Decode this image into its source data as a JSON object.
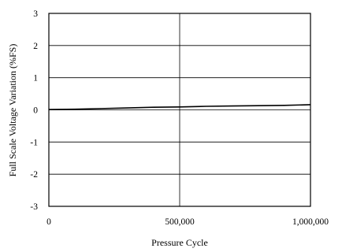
{
  "chart_data": {
    "type": "line",
    "xlabel": "Pressure  Cycle",
    "ylabel": "Full Scale Voltage Variation (%FS)",
    "xlim": [
      0,
      1000000
    ],
    "ylim": [
      -3,
      3
    ],
    "x_ticks": [
      0,
      500000,
      1000000
    ],
    "x_tick_labels": [
      "0",
      "500,000",
      "1,000,000"
    ],
    "y_ticks": [
      3,
      2,
      1,
      0,
      -1,
      -2,
      -3
    ],
    "y_tick_labels": [
      "3",
      "2",
      "1",
      "0",
      "-1",
      "-2",
      "-3"
    ],
    "grid": true,
    "series": [
      {
        "x": [
          0,
          100000,
          200000,
          300000,
          400000,
          500000,
          600000,
          700000,
          800000,
          900000,
          1000000
        ],
        "y": [
          0.01,
          0.02,
          0.04,
          0.06,
          0.08,
          0.09,
          0.11,
          0.12,
          0.13,
          0.14,
          0.16
        ],
        "color": "#000000"
      }
    ]
  }
}
